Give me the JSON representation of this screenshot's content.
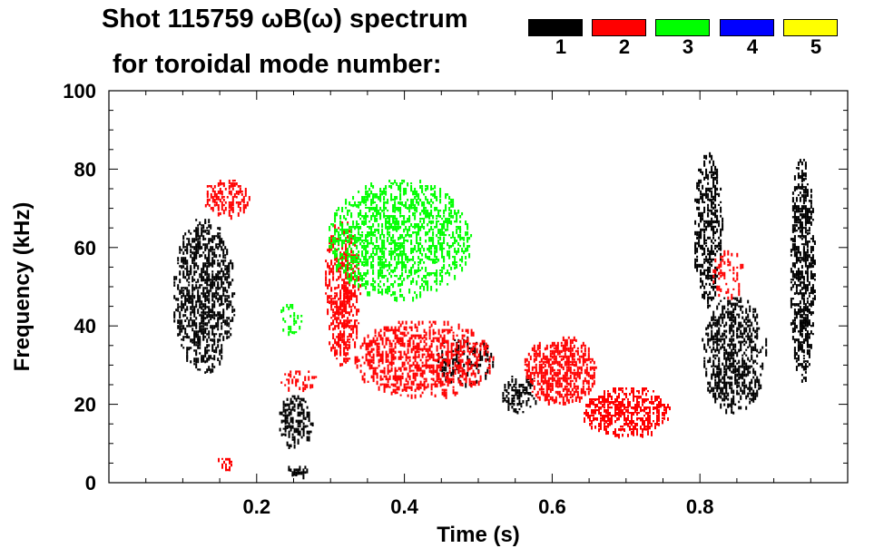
{
  "chart_data": {
    "type": "spectrogram",
    "title_line1": "Shot 115759 ωB(ω) spectrum",
    "title_line2": "for toroidal mode number:",
    "xlabel": "Time (s)",
    "ylabel": "Frequency (kHz)",
    "xlim": [
      0.0,
      1.0
    ],
    "ylim": [
      0,
      100
    ],
    "x_ticks": [
      0.2,
      0.4,
      0.6,
      0.8
    ],
    "x_tick_labels": [
      "0.2",
      "0.4",
      "0.6",
      "0.8"
    ],
    "y_ticks": [
      0,
      20,
      40,
      60,
      80,
      100
    ],
    "y_tick_labels": [
      "0",
      "20",
      "40",
      "60",
      "80",
      "100"
    ],
    "legend": [
      {
        "label": "1",
        "color": "#000000"
      },
      {
        "label": "2",
        "color": "#ff0000"
      },
      {
        "label": "3",
        "color": "#00ff00"
      },
      {
        "label": "4",
        "color": "#0000ff"
      },
      {
        "label": "5",
        "color": "#ffff00"
      }
    ],
    "regions": [
      {
        "mode": "1",
        "t0": 0.085,
        "t1": 0.17,
        "f0": 28,
        "f1": 68,
        "density": 0.55
      },
      {
        "mode": "1",
        "t0": 0.228,
        "t1": 0.275,
        "f0": 9,
        "f1": 23,
        "density": 0.5
      },
      {
        "mode": "1",
        "t0": 0.24,
        "t1": 0.27,
        "f0": 2,
        "f1": 5,
        "density": 0.6
      },
      {
        "mode": "1",
        "t0": 0.44,
        "t1": 0.52,
        "f0": 25,
        "f1": 38,
        "density": 0.35
      },
      {
        "mode": "1",
        "t0": 0.53,
        "t1": 0.58,
        "f0": 18,
        "f1": 28,
        "density": 0.45
      },
      {
        "mode": "1",
        "t0": 0.79,
        "t1": 0.83,
        "f0": 45,
        "f1": 85,
        "density": 0.5
      },
      {
        "mode": "1",
        "t0": 0.8,
        "t1": 0.89,
        "f0": 18,
        "f1": 48,
        "density": 0.5
      },
      {
        "mode": "1",
        "t0": 0.92,
        "t1": 0.955,
        "f0": 25,
        "f1": 84,
        "density": 0.6
      },
      {
        "mode": "2",
        "t0": 0.125,
        "t1": 0.19,
        "f0": 68,
        "f1": 78,
        "density": 0.45
      },
      {
        "mode": "2",
        "t0": 0.29,
        "t1": 0.34,
        "f0": 30,
        "f1": 68,
        "density": 0.55
      },
      {
        "mode": "2",
        "t0": 0.33,
        "t1": 0.52,
        "f0": 22,
        "f1": 42,
        "density": 0.5
      },
      {
        "mode": "2",
        "t0": 0.56,
        "t1": 0.66,
        "f0": 20,
        "f1": 38,
        "density": 0.6
      },
      {
        "mode": "2",
        "t0": 0.64,
        "t1": 0.76,
        "f0": 12,
        "f1": 25,
        "density": 0.6
      },
      {
        "mode": "2",
        "t0": 0.23,
        "t1": 0.28,
        "f0": 24,
        "f1": 30,
        "density": 0.35
      },
      {
        "mode": "2",
        "t0": 0.81,
        "t1": 0.86,
        "f0": 47,
        "f1": 60,
        "density": 0.3
      },
      {
        "mode": "2",
        "t0": 0.14,
        "t1": 0.175,
        "f0": 3,
        "f1": 7,
        "density": 0.3
      },
      {
        "mode": "3",
        "t0": 0.295,
        "t1": 0.49,
        "f0": 47,
        "f1": 78,
        "density": 0.45
      },
      {
        "mode": "3",
        "t0": 0.23,
        "t1": 0.26,
        "f0": 38,
        "f1": 47,
        "density": 0.25
      }
    ]
  }
}
